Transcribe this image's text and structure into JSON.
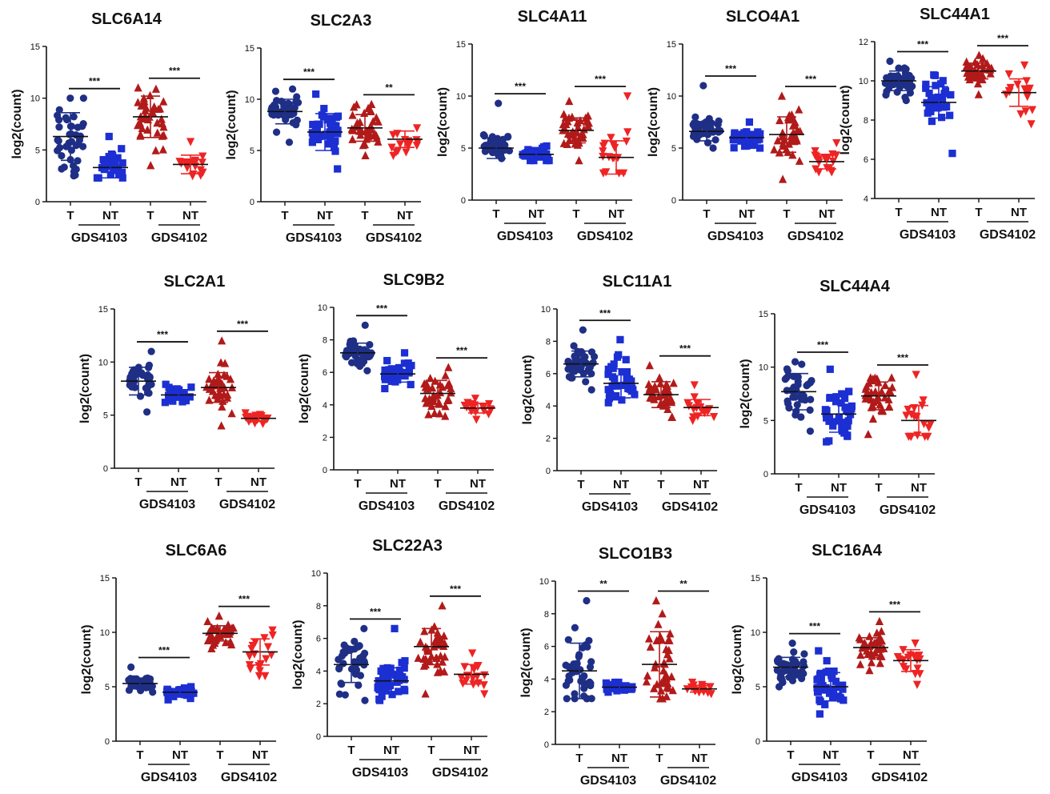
{
  "figure": {
    "ylabel": "log2(count)",
    "groups": [
      "T",
      "NT",
      "T",
      "NT"
    ],
    "datasets": [
      "GDS4103",
      "GDS4102"
    ],
    "colors": {
      "T_GDS4103": "#1f2f86",
      "NT_GDS4103": "#1c2fd2",
      "T_GDS4102": "#b21a1a",
      "NT_GDS4102": "#ee2424"
    },
    "markers": {
      "T_GDS4103": "circle",
      "NT_GDS4103": "square",
      "T_GDS4102": "triangle-up",
      "NT_GDS4102": "triangle-down"
    }
  },
  "chart_data": [
    {
      "type": "scatter",
      "title": "SLC6A14",
      "ylabel": "log2(count)",
      "ylim": [
        0,
        15
      ],
      "yticks": [
        0,
        5,
        10,
        15
      ],
      "categories": [
        "T",
        "NT",
        "T",
        "NT"
      ],
      "datasets": [
        "GDS4103",
        "GDS4102"
      ],
      "means": [
        6.3,
        3.3,
        8.2,
        3.6
      ],
      "sd": [
        2.3,
        1.0,
        2.0,
        0.9
      ],
      "ranges": [
        [
          2.5,
          10
        ],
        [
          2.3,
          6.3
        ],
        [
          3.5,
          11
        ],
        [
          2.5,
          5.8
        ]
      ],
      "n": [
        40,
        25,
        38,
        18
      ],
      "significance": [
        "***",
        "***"
      ]
    },
    {
      "type": "scatter",
      "title": "SLC2A3",
      "ylabel": "log2(count)",
      "ylim": [
        0,
        15
      ],
      "yticks": [
        0,
        5,
        10,
        15
      ],
      "categories": [
        "T",
        "NT",
        "T",
        "NT"
      ],
      "datasets": [
        "GDS4103",
        "GDS4102"
      ],
      "means": [
        8.8,
        6.8,
        7.2,
        6.1
      ],
      "sd": [
        1.2,
        1.8,
        1.3,
        0.8
      ],
      "ranges": [
        [
          5.8,
          11
        ],
        [
          3.2,
          10.5
        ],
        [
          4.5,
          9.5
        ],
        [
          4.5,
          7.2
        ]
      ],
      "n": [
        40,
        40,
        38,
        18
      ],
      "significance": [
        "***",
        "**"
      ]
    },
    {
      "type": "scatter",
      "title": "SLC4A11",
      "ylabel": "log2(count)",
      "ylim": [
        0,
        15
      ],
      "yticks": [
        0,
        5,
        10,
        15
      ],
      "categories": [
        "T",
        "NT",
        "T",
        "NT"
      ],
      "datasets": [
        "GDS4103",
        "GDS4102"
      ],
      "means": [
        5.0,
        4.4,
        6.7,
        4.1
      ],
      "sd": [
        1.0,
        0.4,
        1.2,
        1.6
      ],
      "ranges": [
        [
          4,
          9.3
        ],
        [
          3.8,
          5.2
        ],
        [
          3.8,
          9.5
        ],
        [
          2.6,
          10
        ]
      ],
      "n": [
        40,
        30,
        38,
        18
      ],
      "significance": [
        "***",
        "***"
      ]
    },
    {
      "type": "scatter",
      "title": "SLCO4A1",
      "ylabel": "log2(count)",
      "ylim": [
        0,
        15
      ],
      "yticks": [
        0,
        5,
        10,
        15
      ],
      "categories": [
        "T",
        "NT",
        "T",
        "NT"
      ],
      "datasets": [
        "GDS4103",
        "GDS4102"
      ],
      "means": [
        6.6,
        6.0,
        6.3,
        3.7
      ],
      "sd": [
        0.9,
        0.6,
        1.7,
        0.7
      ],
      "ranges": [
        [
          5,
          11
        ],
        [
          5,
          7.5
        ],
        [
          2,
          10
        ],
        [
          2.7,
          5.5
        ]
      ],
      "n": [
        40,
        35,
        38,
        18
      ],
      "significance": [
        "***",
        "***"
      ]
    },
    {
      "type": "scatter",
      "title": "SLC44A1",
      "ylabel": "log2(count)",
      "ylim": [
        4,
        12
      ],
      "yticks": [
        4,
        6,
        8,
        10,
        12
      ],
      "categories": [
        "T",
        "NT",
        "T",
        "NT"
      ],
      "datasets": [
        "GDS4103",
        "GDS4102"
      ],
      "means": [
        10.0,
        8.9,
        10.5,
        9.4
      ],
      "sd": [
        0.5,
        0.8,
        0.4,
        0.7
      ],
      "ranges": [
        [
          9,
          11
        ],
        [
          6.3,
          10.3
        ],
        [
          9.3,
          11.3
        ],
        [
          7.8,
          10.8
        ]
      ],
      "n": [
        40,
        35,
        38,
        18
      ],
      "significance": [
        "***",
        "***"
      ]
    },
    {
      "type": "scatter",
      "title": "SLC2A1",
      "ylabel": "log2(count)",
      "ylim": [
        0,
        15
      ],
      "yticks": [
        0,
        5,
        10,
        15
      ],
      "categories": [
        "T",
        "NT",
        "T",
        "NT"
      ],
      "datasets": [
        "GDS4103",
        "GDS4102"
      ],
      "means": [
        8.2,
        6.9,
        7.6,
        4.7
      ],
      "sd": [
        1.3,
        0.5,
        1.4,
        0.3
      ],
      "ranges": [
        [
          5.3,
          11
        ],
        [
          6.2,
          7.9
        ],
        [
          4,
          12
        ],
        [
          4.2,
          5.2
        ]
      ],
      "n": [
        40,
        30,
        38,
        18
      ],
      "significance": [
        "***",
        "***"
      ]
    },
    {
      "type": "scatter",
      "title": "SLC9B2",
      "ylabel": "log2(count)",
      "ylim": [
        0,
        10
      ],
      "yticks": [
        0,
        2,
        4,
        6,
        8,
        10
      ],
      "categories": [
        "T",
        "NT",
        "T",
        "NT"
      ],
      "datasets": [
        "GDS4103",
        "GDS4102"
      ],
      "means": [
        7.2,
        5.9,
        4.7,
        3.8
      ],
      "sd": [
        0.6,
        0.5,
        0.8,
        0.3
      ],
      "ranges": [
        [
          6.1,
          8.9
        ],
        [
          5,
          7.2
        ],
        [
          3.3,
          6.3
        ],
        [
          3.1,
          4.4
        ]
      ],
      "n": [
        40,
        35,
        38,
        18
      ],
      "significance": [
        "***",
        "***"
      ]
    },
    {
      "type": "scatter",
      "title": "SLC11A1",
      "ylabel": "log2(count)",
      "ylim": [
        0,
        10
      ],
      "yticks": [
        0,
        2,
        4,
        6,
        8,
        10
      ],
      "categories": [
        "T",
        "NT",
        "T",
        "NT"
      ],
      "datasets": [
        "GDS4103",
        "GDS4102"
      ],
      "means": [
        6.6,
        5.4,
        4.7,
        3.9
      ],
      "sd": [
        0.8,
        0.9,
        0.8,
        0.5
      ],
      "ranges": [
        [
          5,
          8.7
        ],
        [
          4.2,
          8.1
        ],
        [
          3.3,
          6.5
        ],
        [
          3.1,
          5.3
        ]
      ],
      "n": [
        40,
        35,
        38,
        18
      ],
      "significance": [
        "***",
        "***"
      ]
    },
    {
      "type": "scatter",
      "title": "SLC44A4",
      "ylabel": "log2(count)",
      "ylim": [
        0,
        15
      ],
      "yticks": [
        0,
        5,
        10,
        15
      ],
      "categories": [
        "T",
        "NT",
        "T",
        "NT"
      ],
      "datasets": [
        "GDS4103",
        "GDS4102"
      ],
      "means": [
        7.7,
        5.6,
        7.3,
        5.0
      ],
      "sd": [
        1.7,
        1.7,
        1.3,
        1.4
      ],
      "ranges": [
        [
          4,
          10.5
        ],
        [
          3,
          9.8
        ],
        [
          3.7,
          9
        ],
        [
          3.5,
          9.3
        ]
      ],
      "n": [
        40,
        40,
        38,
        18
      ],
      "significance": [
        "***",
        "***"
      ]
    },
    {
      "type": "scatter",
      "title": "SLC6A6",
      "ylabel": "log2(count)",
      "ylim": [
        0,
        15
      ],
      "yticks": [
        0,
        5,
        10,
        15
      ],
      "categories": [
        "T",
        "NT",
        "T",
        "NT"
      ],
      "datasets": [
        "GDS4103",
        "GDS4102"
      ],
      "means": [
        5.3,
        4.5,
        9.9,
        8.2
      ],
      "sd": [
        0.5,
        0.3,
        0.7,
        1.2
      ],
      "ranges": [
        [
          4.5,
          6.8
        ],
        [
          3.8,
          5
        ],
        [
          8.5,
          11.5
        ],
        [
          6,
          10.2
        ]
      ],
      "n": [
        40,
        35,
        38,
        18
      ],
      "significance": [
        "***",
        "***"
      ]
    },
    {
      "type": "scatter",
      "title": "SLC22A3",
      "ylabel": "log2(count)",
      "ylim": [
        0,
        10
      ],
      "yticks": [
        0,
        2,
        4,
        6,
        8,
        10
      ],
      "categories": [
        "T",
        "NT",
        "T",
        "NT"
      ],
      "datasets": [
        "GDS4103",
        "GDS4102"
      ],
      "means": [
        4.4,
        3.4,
        5.5,
        3.8
      ],
      "sd": [
        1.1,
        0.8,
        1.1,
        0.6
      ],
      "ranges": [
        [
          2.2,
          6.6
        ],
        [
          2.2,
          6.6
        ],
        [
          2.6,
          8
        ],
        [
          2.6,
          5.1
        ]
      ],
      "n": [
        40,
        40,
        38,
        18
      ],
      "significance": [
        "***",
        "***"
      ]
    },
    {
      "type": "scatter",
      "title": "SLCO1B3",
      "ylabel": "log2(count)",
      "ylim": [
        0,
        10
      ],
      "yticks": [
        0,
        2,
        4,
        6,
        8,
        10
      ],
      "categories": [
        "T",
        "NT",
        "T",
        "NT"
      ],
      "datasets": [
        "GDS4103",
        "GDS4102"
      ],
      "means": [
        4.5,
        3.5,
        4.9,
        3.4
      ],
      "sd": [
        1.7,
        0.2,
        2.0,
        0.2
      ],
      "ranges": [
        [
          2.8,
          8.8
        ],
        [
          3.2,
          3.8
        ],
        [
          2.8,
          8.8
        ],
        [
          3.1,
          3.8
        ]
      ],
      "n": [
        40,
        30,
        38,
        18
      ],
      "significance": [
        "**",
        "**"
      ]
    },
    {
      "type": "scatter",
      "title": "SLC16A4",
      "ylabel": "log2(count)",
      "ylim": [
        0,
        15
      ],
      "yticks": [
        0,
        5,
        10,
        15
      ],
      "categories": [
        "T",
        "NT",
        "T",
        "NT"
      ],
      "datasets": [
        "GDS4103",
        "GDS4102"
      ],
      "means": [
        6.8,
        5.0,
        8.6,
        7.4
      ],
      "sd": [
        0.9,
        1.3,
        0.9,
        1.0
      ],
      "ranges": [
        [
          5,
          9
        ],
        [
          2.5,
          8.3
        ],
        [
          6.5,
          11
        ],
        [
          5.2,
          9
        ]
      ],
      "n": [
        40,
        40,
        38,
        18
      ],
      "significance": [
        "***",
        "***"
      ]
    }
  ]
}
